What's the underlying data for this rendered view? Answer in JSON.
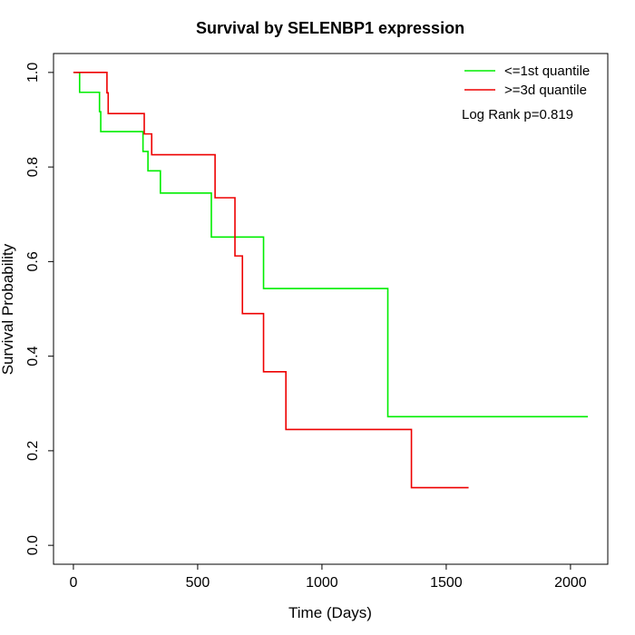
{
  "chart_data": {
    "type": "line",
    "title": "Survival by SELENBP1 expression",
    "xlabel": "Time (Days)",
    "ylabel": "Survival Probability",
    "xlim": [
      -80,
      2150
    ],
    "ylim": [
      -0.04,
      1.04
    ],
    "xticks": [
      0,
      500,
      1000,
      1500,
      2000
    ],
    "yticks": [
      0.0,
      0.2,
      0.4,
      0.6,
      0.8,
      1.0
    ],
    "xtick_labels": [
      "0",
      "500",
      "1000",
      "1500",
      "2000"
    ],
    "ytick_labels": [
      "0.0",
      "0.2",
      "0.4",
      "0.6",
      "0.8",
      "1.0"
    ],
    "grid": false,
    "legend_position": "top-right",
    "annotation": "Log Rank p=0.819",
    "series": [
      {
        "name": "<=1st quantile",
        "color": "#00ee00",
        "step": "post",
        "points": [
          [
            0,
            1.0
          ],
          [
            25,
            0.958
          ],
          [
            105,
            0.917
          ],
          [
            110,
            0.875
          ],
          [
            280,
            0.833
          ],
          [
            300,
            0.792
          ],
          [
            350,
            0.745
          ],
          [
            555,
            0.652
          ],
          [
            765,
            0.543
          ],
          [
            1265,
            0.272
          ],
          [
            2070,
            0.272
          ]
        ]
      },
      {
        "name": ">=3d quantile",
        "color": "#ee0000",
        "step": "post",
        "points": [
          [
            0,
            1.0
          ],
          [
            135,
            0.957
          ],
          [
            140,
            0.913
          ],
          [
            285,
            0.87
          ],
          [
            315,
            0.826
          ],
          [
            570,
            0.735
          ],
          [
            650,
            0.612
          ],
          [
            680,
            0.49
          ],
          [
            765,
            0.367
          ],
          [
            855,
            0.245
          ],
          [
            1360,
            0.122
          ],
          [
            1590,
            0.122
          ]
        ]
      }
    ]
  }
}
